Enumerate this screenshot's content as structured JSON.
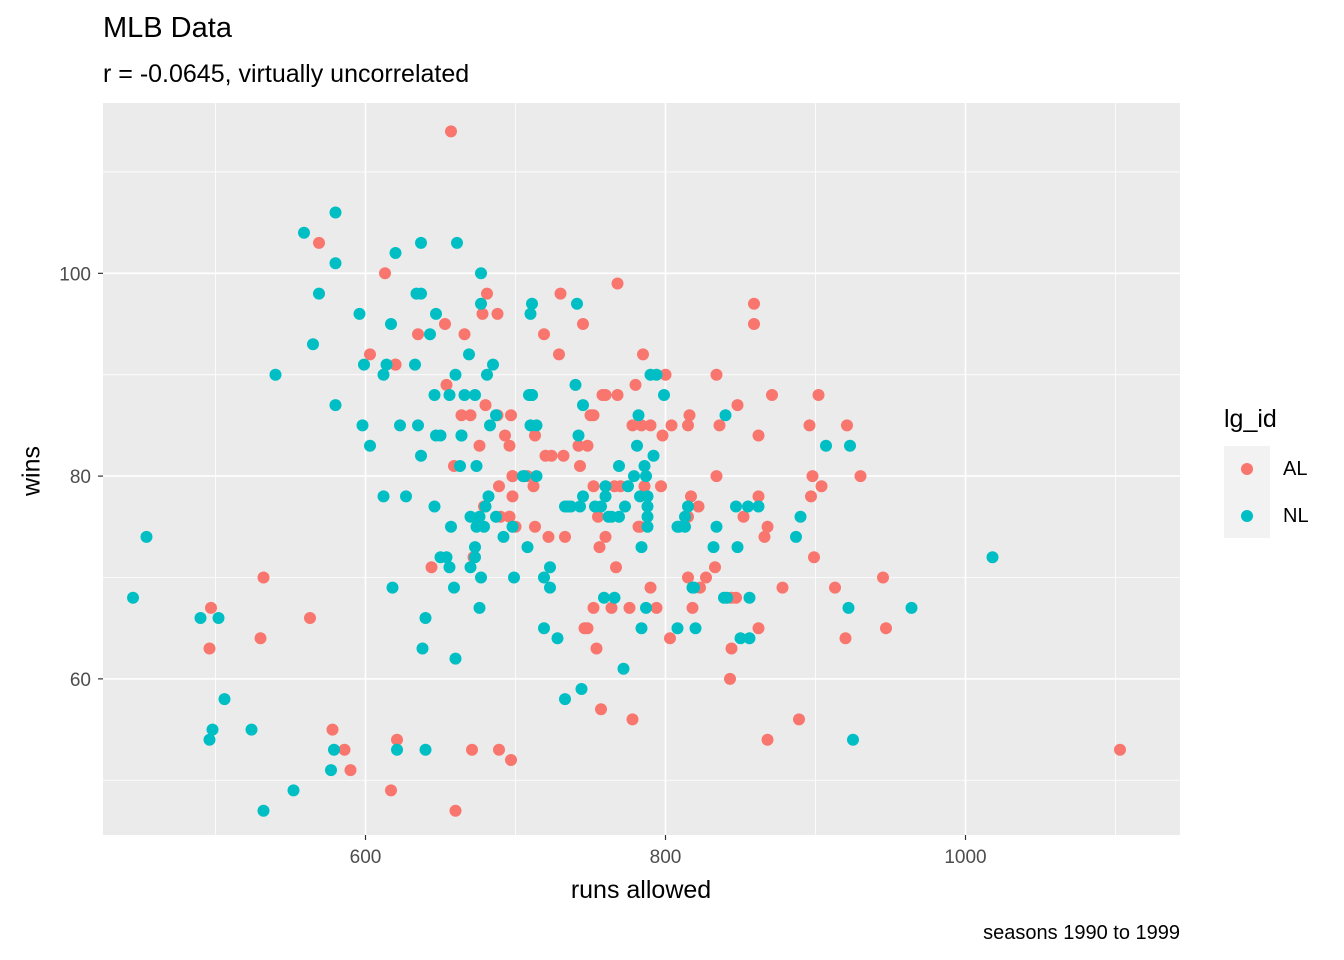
{
  "title": "MLB Data",
  "subtitle": "r = -0.0645, virtually uncorrelated",
  "caption": "seasons 1990 to 1999",
  "colors": {
    "AL": "#F8766D",
    "NL": "#00BFC4",
    "panel": "#EBEBEB",
    "grid": "#FFFFFF",
    "tick": "#4D4D4D"
  },
  "chart_data": {
    "type": "scatter",
    "title": "MLB Data",
    "subtitle": "r = -0.0645, virtually uncorrelated",
    "xlabel": "runs allowed",
    "ylabel": "wins",
    "xlim": [
      425,
      1143
    ],
    "ylim": [
      44.6,
      116.8
    ],
    "x_ticks": [
      600,
      800,
      1000
    ],
    "y_ticks": [
      60,
      80,
      100
    ],
    "x_minor": [
      500,
      700,
      900,
      1100
    ],
    "y_minor": [
      50,
      70,
      90,
      110
    ],
    "grid": true,
    "legend": {
      "title": "lg_id",
      "position": "right",
      "entries": [
        "AL",
        "NL"
      ]
    },
    "series": [
      {
        "name": "AL",
        "color": "#F8766D",
        "points": [
          [
            657,
            114
          ],
          [
            569,
            103
          ],
          [
            613,
            100
          ],
          [
            768,
            99
          ],
          [
            730,
            98
          ],
          [
            681,
            98
          ],
          [
            603,
            92
          ],
          [
            745,
            95
          ],
          [
            653,
            95
          ],
          [
            719,
            94
          ],
          [
            666,
            94
          ],
          [
            678,
            96
          ],
          [
            688,
            96
          ],
          [
            859,
            97
          ],
          [
            859,
            95
          ],
          [
            635,
            94
          ],
          [
            729,
            92
          ],
          [
            785,
            92
          ],
          [
            688,
            86
          ],
          [
            697,
            86
          ],
          [
            654,
            89
          ],
          [
            664,
            86
          ],
          [
            620,
            91
          ],
          [
            800,
            90
          ],
          [
            834,
            90
          ],
          [
            680,
            87
          ],
          [
            713,
            84
          ],
          [
            693,
            84
          ],
          [
            750,
            86
          ],
          [
            758,
            88
          ],
          [
            768,
            88
          ],
          [
            780,
            89
          ],
          [
            760,
            88
          ],
          [
            816,
            86
          ],
          [
            848,
            87
          ],
          [
            871,
            88
          ],
          [
            902,
            88
          ],
          [
            836,
            85
          ],
          [
            778,
            85
          ],
          [
            815,
            85
          ],
          [
            784,
            85
          ],
          [
            790,
            85
          ],
          [
            862,
            84
          ],
          [
            896,
            85
          ],
          [
            921,
            85
          ],
          [
            834,
            80
          ],
          [
            898,
            80
          ],
          [
            904,
            79
          ],
          [
            930,
            80
          ],
          [
            748,
            83
          ],
          [
            742,
            83
          ],
          [
            696,
            83
          ],
          [
            676,
            83
          ],
          [
            698,
            80
          ],
          [
            708,
            80
          ],
          [
            712,
            79
          ],
          [
            689,
            79
          ],
          [
            720,
            82
          ],
          [
            732,
            82
          ],
          [
            743,
            81
          ],
          [
            698,
            78
          ],
          [
            679,
            77
          ],
          [
            713,
            75
          ],
          [
            690,
            76
          ],
          [
            696,
            76
          ],
          [
            752,
            79
          ],
          [
            770,
            79
          ],
          [
            786,
            79
          ],
          [
            797,
            79
          ],
          [
            822,
            77
          ],
          [
            862,
            78
          ],
          [
            852,
            76
          ],
          [
            868,
            75
          ],
          [
            815,
            76
          ],
          [
            817,
            78
          ],
          [
            823,
            69
          ],
          [
            897,
            78
          ],
          [
            899,
            72
          ],
          [
            827,
            70
          ],
          [
            815,
            70
          ],
          [
            833,
            71
          ],
          [
            878,
            69
          ],
          [
            913,
            69
          ],
          [
            945,
            70
          ],
          [
            866,
            74
          ],
          [
            844,
            68
          ],
          [
            847,
            68
          ],
          [
            862,
            65
          ],
          [
            752,
            86
          ],
          [
            752,
            67
          ],
          [
            754,
            63
          ],
          [
            748,
            65
          ],
          [
            755,
            76
          ],
          [
            766,
            79
          ],
          [
            783,
            75
          ],
          [
            782,
            75
          ],
          [
            790,
            69
          ],
          [
            756,
            73
          ],
          [
            767,
            71
          ],
          [
            746,
            65
          ],
          [
            722,
            74
          ],
          [
            733,
            74
          ],
          [
            724,
            82
          ],
          [
            698,
            80
          ],
          [
            696,
            76
          ],
          [
            659,
            81
          ],
          [
            672,
            72
          ],
          [
            644,
            71
          ],
          [
            620,
            91
          ],
          [
            670,
            86
          ],
          [
            700,
            75
          ],
          [
            760,
            74
          ],
          [
            803,
            64
          ],
          [
            794,
            67
          ],
          [
            776,
            67
          ],
          [
            818,
            67
          ],
          [
            764,
            67
          ],
          [
            889,
            56
          ],
          [
            920,
            64
          ],
          [
            947,
            65
          ],
          [
            844,
            63
          ],
          [
            843,
            60
          ],
          [
            757,
            57
          ],
          [
            778,
            56
          ],
          [
            868,
            54
          ],
          [
            1103,
            53
          ],
          [
            697,
            52
          ],
          [
            689,
            53
          ],
          [
            671,
            53
          ],
          [
            660,
            47
          ],
          [
            621,
            54
          ],
          [
            586,
            53
          ],
          [
            590,
            51
          ],
          [
            578,
            55
          ],
          [
            617,
            49
          ],
          [
            532,
            70
          ],
          [
            563,
            66
          ],
          [
            530,
            64
          ],
          [
            497,
            67
          ],
          [
            496,
            63
          ],
          [
            804,
            85
          ],
          [
            798,
            84
          ]
        ]
      },
      {
        "name": "NL",
        "color": "#00BFC4",
        "points": [
          [
            580,
            106
          ],
          [
            559,
            104
          ],
          [
            620,
            102
          ],
          [
            637,
            103
          ],
          [
            661,
            103
          ],
          [
            580,
            101
          ],
          [
            677,
            100
          ],
          [
            569,
            98
          ],
          [
            634,
            98
          ],
          [
            637,
            98
          ],
          [
            596,
            96
          ],
          [
            647,
            96
          ],
          [
            677,
            97
          ],
          [
            711,
            97
          ],
          [
            710,
            96
          ],
          [
            741,
            97
          ],
          [
            565,
            93
          ],
          [
            617,
            95
          ],
          [
            643,
            94
          ],
          [
            633,
            91
          ],
          [
            660,
            90
          ],
          [
            681,
            90
          ],
          [
            709,
            88
          ],
          [
            711,
            88
          ],
          [
            599,
            91
          ],
          [
            612,
            90
          ],
          [
            614,
            91
          ],
          [
            669,
            92
          ],
          [
            685,
            91
          ],
          [
            540,
            90
          ],
          [
            580,
            87
          ],
          [
            598,
            85
          ],
          [
            603,
            83
          ],
          [
            623,
            85
          ],
          [
            635,
            85
          ],
          [
            637,
            82
          ],
          [
            647,
            84
          ],
          [
            650,
            84
          ],
          [
            664,
            84
          ],
          [
            663,
            81
          ],
          [
            674,
            81
          ],
          [
            666,
            88
          ],
          [
            673,
            88
          ],
          [
            646,
            88
          ],
          [
            656,
            88
          ],
          [
            710,
            85
          ],
          [
            714,
            85
          ],
          [
            664,
            84
          ],
          [
            683,
            85
          ],
          [
            687,
            86
          ],
          [
            740,
            89
          ],
          [
            745,
            87
          ],
          [
            742,
            84
          ],
          [
            790,
            90
          ],
          [
            794,
            90
          ],
          [
            782,
            86
          ],
          [
            799,
            88
          ],
          [
            792,
            82
          ],
          [
            781,
            83
          ],
          [
            840,
            86
          ],
          [
            907,
            83
          ],
          [
            923,
            83
          ],
          [
            787,
            80
          ],
          [
            786,
            81
          ],
          [
            769,
            81
          ],
          [
            783,
            78
          ],
          [
            788,
            77
          ],
          [
            788,
            75
          ],
          [
            788,
            76
          ],
          [
            784,
            73
          ],
          [
            760,
            78
          ],
          [
            760,
            79
          ],
          [
            757,
            77
          ],
          [
            753,
            77
          ],
          [
            762,
            76
          ],
          [
            769,
            76
          ],
          [
            773,
            77
          ],
          [
            775,
            79
          ],
          [
            779,
            80
          ],
          [
            735,
            77
          ],
          [
            737,
            77
          ],
          [
            745,
            78
          ],
          [
            743,
            77
          ],
          [
            733,
            77
          ],
          [
            706,
            80
          ],
          [
            705,
            80
          ],
          [
            708,
            73
          ],
          [
            719,
            70
          ],
          [
            692,
            74
          ],
          [
            698,
            75
          ],
          [
            680,
            77
          ],
          [
            682,
            78
          ],
          [
            687,
            76
          ],
          [
            670,
            76
          ],
          [
            676,
            76
          ],
          [
            674,
            75
          ],
          [
            679,
            75
          ],
          [
            673,
            72
          ],
          [
            670,
            71
          ],
          [
            673,
            73
          ],
          [
            657,
            75
          ],
          [
            650,
            72
          ],
          [
            646,
            77
          ],
          [
            654,
            72
          ],
          [
            656,
            71
          ],
          [
            659,
            69
          ],
          [
            677,
            70
          ],
          [
            676,
            67
          ],
          [
            660,
            62
          ],
          [
            640,
            66
          ],
          [
            638,
            63
          ],
          [
            612,
            78
          ],
          [
            627,
            78
          ],
          [
            618,
            69
          ],
          [
            699,
            70
          ],
          [
            723,
            71
          ],
          [
            711,
            88
          ],
          [
            714,
            80
          ],
          [
            809,
            75
          ],
          [
            808,
            75
          ],
          [
            813,
            76
          ],
          [
            813,
            75
          ],
          [
            815,
            77
          ],
          [
            808,
            65
          ],
          [
            820,
            65
          ],
          [
            832,
            73
          ],
          [
            834,
            75
          ],
          [
            839,
            68
          ],
          [
            847,
            77
          ],
          [
            848,
            73
          ],
          [
            856,
            68
          ],
          [
            855,
            77
          ],
          [
            862,
            77
          ],
          [
            887,
            74
          ],
          [
            890,
            76
          ],
          [
            922,
            67
          ],
          [
            964,
            67
          ],
          [
            1018,
            72
          ],
          [
            850,
            64
          ],
          [
            856,
            64
          ],
          [
            841,
            68
          ],
          [
            818,
            69
          ],
          [
            766,
            68
          ],
          [
            764,
            76
          ],
          [
            784,
            65
          ],
          [
            787,
            67
          ],
          [
            772,
            61
          ],
          [
            719,
            65
          ],
          [
            728,
            64
          ],
          [
            723,
            69
          ],
          [
            744,
            59
          ],
          [
            733,
            58
          ],
          [
            759,
            68
          ],
          [
            788,
            78
          ],
          [
            819,
            69
          ],
          [
            925,
            54
          ],
          [
            640,
            53
          ],
          [
            621,
            53
          ],
          [
            579,
            53
          ],
          [
            577,
            51
          ],
          [
            552,
            49
          ],
          [
            532,
            47
          ],
          [
            524,
            55
          ],
          [
            506,
            58
          ],
          [
            498,
            55
          ],
          [
            496,
            54
          ],
          [
            502,
            66
          ],
          [
            490,
            66
          ],
          [
            445,
            68
          ],
          [
            454,
            74
          ]
        ]
      }
    ]
  }
}
